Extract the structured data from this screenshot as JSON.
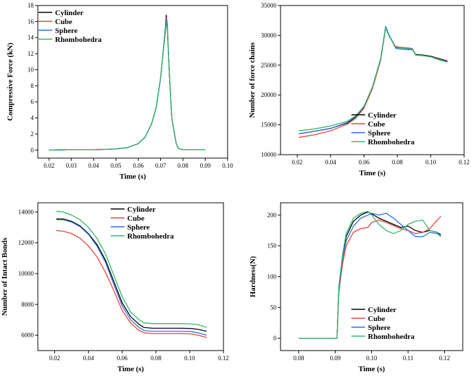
{
  "chart_data": [
    {
      "type": "line",
      "xlabel": "Time (s)",
      "ylabel": "Compressive Force (kN)",
      "xlim": [
        0.015,
        0.1
      ],
      "ylim": [
        -1,
        18
      ],
      "xticks": [
        0.02,
        0.03,
        0.04,
        0.05,
        0.06,
        0.07,
        0.08,
        0.09,
        0.1
      ],
      "xtick_labels": [
        "0.02",
        "0.03",
        "0.04",
        "0.05",
        "0.06",
        "0.07",
        "0.08",
        "0.09",
        "0.10"
      ],
      "yticks": [
        0,
        2,
        4,
        6,
        8,
        10,
        12,
        14,
        16,
        18
      ],
      "ytick_labels": [
        "0",
        "2",
        "4",
        "6",
        "8",
        "10",
        "12",
        "14",
        "16",
        "18"
      ],
      "legend_position": "top-left",
      "series": [
        {
          "name": "Cylinder",
          "color": "#000000",
          "x": [
            0.02,
            0.03,
            0.04,
            0.045,
            0.05,
            0.055,
            0.06,
            0.063,
            0.066,
            0.068,
            0.07,
            0.071,
            0.072,
            0.0725,
            0.073,
            0.074,
            0.075,
            0.077,
            0.078,
            0.08,
            0.09
          ],
          "y": [
            0,
            0.05,
            0.05,
            0.08,
            0.15,
            0.3,
            0.8,
            1.6,
            3.3,
            5.3,
            9.0,
            11.8,
            14.8,
            16.8,
            15.5,
            9.0,
            4.0,
            0.8,
            0.2,
            0.05,
            0.05
          ]
        },
        {
          "name": "Cube",
          "color": "#e8413a",
          "x": [
            0.02,
            0.03,
            0.04,
            0.045,
            0.05,
            0.055,
            0.06,
            0.063,
            0.066,
            0.068,
            0.07,
            0.071,
            0.072,
            0.0725,
            0.073,
            0.074,
            0.075,
            0.077,
            0.078,
            0.08,
            0.09
          ],
          "y": [
            0,
            0.05,
            0.05,
            0.08,
            0.15,
            0.3,
            0.8,
            1.6,
            3.3,
            5.3,
            9.0,
            11.8,
            14.6,
            16.5,
            15.3,
            9.0,
            4.0,
            0.8,
            0.2,
            0.05,
            0.05
          ]
        },
        {
          "name": "Sphere",
          "color": "#2c6fe0",
          "x": [
            0.02,
            0.03,
            0.04,
            0.045,
            0.05,
            0.055,
            0.06,
            0.063,
            0.066,
            0.068,
            0.07,
            0.071,
            0.072,
            0.0725,
            0.073,
            0.074,
            0.075,
            0.077,
            0.078,
            0.08,
            0.09
          ],
          "y": [
            0,
            0.05,
            0.05,
            0.08,
            0.15,
            0.3,
            0.8,
            1.6,
            3.3,
            5.3,
            9.0,
            11.8,
            14.5,
            16.2,
            15.2,
            9.0,
            4.0,
            0.8,
            0.2,
            0.05,
            0.05
          ]
        },
        {
          "name": "Rhombohedra",
          "color": "#2fb76b",
          "x": [
            0.02,
            0.03,
            0.04,
            0.045,
            0.05,
            0.055,
            0.06,
            0.063,
            0.066,
            0.068,
            0.07,
            0.071,
            0.072,
            0.0725,
            0.073,
            0.074,
            0.075,
            0.077,
            0.078,
            0.08,
            0.09
          ],
          "y": [
            0,
            0.05,
            0.05,
            0.08,
            0.15,
            0.3,
            0.8,
            1.6,
            3.3,
            5.3,
            9.0,
            11.8,
            14.3,
            15.8,
            15.0,
            9.0,
            4.0,
            0.8,
            0.2,
            0.05,
            0.05
          ]
        }
      ]
    },
    {
      "type": "line",
      "xlabel": "Time (s)",
      "ylabel": "Number of force chains",
      "xlim": [
        0.01,
        0.12
      ],
      "ylim": [
        10000,
        35000
      ],
      "xticks": [
        0.02,
        0.04,
        0.06,
        0.08,
        0.1,
        0.12
      ],
      "xtick_labels": [
        "0.02",
        "0.04",
        "0.06",
        "0.08",
        "0.10",
        "0.12"
      ],
      "yticks": [
        10000,
        15000,
        20000,
        25000,
        30000,
        35000
      ],
      "ytick_labels": [
        "10000",
        "15000",
        "20000",
        "25000",
        "30000",
        "35000"
      ],
      "legend_position": "bottom-right",
      "series": [
        {
          "name": "Cylinder",
          "color": "#000000",
          "x": [
            0.021,
            0.03,
            0.04,
            0.05,
            0.055,
            0.06,
            0.065,
            0.07,
            0.073,
            0.075,
            0.079,
            0.082,
            0.086,
            0.089,
            0.091,
            0.095,
            0.1,
            0.105,
            0.11
          ],
          "y": [
            13500,
            13900,
            14400,
            15300,
            16300,
            18000,
            21200,
            26000,
            31400,
            30000,
            28000,
            27900,
            27800,
            27700,
            26800,
            26700,
            26500,
            26100,
            25700
          ]
        },
        {
          "name": "Cube",
          "color": "#e8413a",
          "x": [
            0.021,
            0.03,
            0.04,
            0.05,
            0.055,
            0.06,
            0.065,
            0.07,
            0.073,
            0.075,
            0.079,
            0.082,
            0.086,
            0.089,
            0.091,
            0.095,
            0.1,
            0.105,
            0.11
          ],
          "y": [
            12900,
            13300,
            14000,
            15100,
            16100,
            17800,
            21000,
            25800,
            31200,
            29900,
            28100,
            28000,
            27900,
            27800,
            26700,
            26600,
            26400,
            26000,
            25600
          ]
        },
        {
          "name": "Sphere",
          "color": "#2c6fe0",
          "x": [
            0.021,
            0.03,
            0.04,
            0.05,
            0.055,
            0.06,
            0.065,
            0.07,
            0.073,
            0.075,
            0.079,
            0.082,
            0.086,
            0.089,
            0.091,
            0.095,
            0.1,
            0.105,
            0.11
          ],
          "y": [
            13500,
            13900,
            14400,
            15400,
            16400,
            18100,
            21300,
            26100,
            31500,
            30100,
            27800,
            27700,
            27600,
            27600,
            26700,
            26600,
            26400,
            25900,
            25600
          ]
        },
        {
          "name": "Rhombohedra",
          "color": "#2fb76b",
          "x": [
            0.021,
            0.03,
            0.04,
            0.05,
            0.055,
            0.06,
            0.065,
            0.07,
            0.073,
            0.075,
            0.079,
            0.082,
            0.086,
            0.089,
            0.091,
            0.095,
            0.1,
            0.105,
            0.11
          ],
          "y": [
            14000,
            14300,
            14800,
            15600,
            16500,
            18100,
            21300,
            26000,
            31300,
            29900,
            27900,
            27900,
            27800,
            27700,
            26700,
            26600,
            26400,
            25900,
            25500
          ]
        }
      ]
    },
    {
      "type": "line",
      "xlabel": "Time (s)",
      "ylabel": "Number of Intact Bonds",
      "xlim": [
        0.01,
        0.12
      ],
      "ylim": [
        5000,
        14600
      ],
      "xticks": [
        0.02,
        0.04,
        0.06,
        0.08,
        0.1,
        0.12
      ],
      "xtick_labels": [
        "0.02",
        "0.04",
        "0.06",
        "0.08",
        "0.10",
        "0.12"
      ],
      "yticks": [
        6000,
        8000,
        10000,
        12000,
        14000
      ],
      "ytick_labels": [
        "6000",
        "8000",
        "10000",
        "12000",
        "14000"
      ],
      "legend_position": "top-right",
      "series": [
        {
          "name": "Cylinder",
          "color": "#000000",
          "x": [
            0.021,
            0.025,
            0.03,
            0.035,
            0.04,
            0.045,
            0.05,
            0.055,
            0.06,
            0.065,
            0.07,
            0.073,
            0.078,
            0.085,
            0.09,
            0.095,
            0.1,
            0.105,
            0.11
          ],
          "y": [
            13550,
            13550,
            13400,
            13100,
            12600,
            11900,
            10900,
            9500,
            8100,
            7200,
            6700,
            6500,
            6450,
            6450,
            6450,
            6450,
            6440,
            6380,
            6250
          ]
        },
        {
          "name": "Cube",
          "color": "#e8413a",
          "x": [
            0.021,
            0.025,
            0.03,
            0.035,
            0.04,
            0.045,
            0.05,
            0.055,
            0.06,
            0.065,
            0.07,
            0.073,
            0.078,
            0.085,
            0.09,
            0.095,
            0.1,
            0.105,
            0.11
          ],
          "y": [
            12800,
            12750,
            12600,
            12300,
            11800,
            11100,
            10100,
            8900,
            7600,
            6800,
            6300,
            6150,
            6100,
            6100,
            6100,
            6100,
            6090,
            6000,
            5850
          ]
        },
        {
          "name": "Sphere",
          "color": "#2c6fe0",
          "x": [
            0.021,
            0.025,
            0.03,
            0.035,
            0.04,
            0.045,
            0.05,
            0.055,
            0.06,
            0.065,
            0.07,
            0.073,
            0.078,
            0.085,
            0.09,
            0.095,
            0.1,
            0.105,
            0.11
          ],
          "y": [
            13500,
            13500,
            13350,
            13050,
            12550,
            11800,
            10750,
            9300,
            7900,
            7000,
            6500,
            6300,
            6250,
            6250,
            6250,
            6250,
            6240,
            6150,
            6000
          ]
        },
        {
          "name": "Rhombohedra",
          "color": "#2fb76b",
          "x": [
            0.021,
            0.025,
            0.03,
            0.035,
            0.04,
            0.045,
            0.05,
            0.055,
            0.06,
            0.065,
            0.07,
            0.073,
            0.078,
            0.085,
            0.09,
            0.095,
            0.1,
            0.105,
            0.11
          ],
          "y": [
            14050,
            14000,
            13800,
            13500,
            13000,
            12300,
            11300,
            9900,
            8500,
            7500,
            7000,
            6800,
            6750,
            6750,
            6750,
            6750,
            6740,
            6680,
            6500
          ]
        }
      ]
    },
    {
      "type": "line",
      "xlabel": "Time (s)",
      "ylabel": "Hardness(N)",
      "xlim": [
        0.075,
        0.125
      ],
      "ylim": [
        -20,
        220
      ],
      "xticks": [
        0.08,
        0.09,
        0.1,
        0.11,
        0.12
      ],
      "xtick_labels": [
        "0.08",
        "0.09",
        "0.10",
        "0.11",
        "0.12"
      ],
      "yticks": [
        0,
        50,
        100,
        150,
        200
      ],
      "ytick_labels": [
        "0",
        "50",
        "100",
        "150",
        "200"
      ],
      "legend_position": "bottom-right",
      "series": [
        {
          "name": "Cylinder",
          "color": "#000000",
          "x": [
            0.08,
            0.09,
            0.0905,
            0.091,
            0.092,
            0.093,
            0.095,
            0.097,
            0.099,
            0.1,
            0.102,
            0.104,
            0.106,
            0.108,
            0.11,
            0.112,
            0.114,
            0.116,
            0.118,
            0.119
          ],
          "y": [
            0,
            0,
            0,
            80,
            130,
            165,
            190,
            200,
            205,
            202,
            195,
            190,
            185,
            180,
            182,
            175,
            172,
            175,
            172,
            168
          ]
        },
        {
          "name": "Cube",
          "color": "#e8413a",
          "x": [
            0.08,
            0.09,
            0.0905,
            0.091,
            0.092,
            0.093,
            0.095,
            0.097,
            0.099,
            0.1,
            0.102,
            0.104,
            0.106,
            0.108,
            0.11,
            0.112,
            0.114,
            0.116,
            0.118,
            0.119
          ],
          "y": [
            0,
            0,
            0,
            75,
            120,
            150,
            172,
            178,
            180,
            188,
            192,
            188,
            183,
            178,
            175,
            170,
            172,
            178,
            192,
            198
          ]
        },
        {
          "name": "Sphere",
          "color": "#2c6fe0",
          "x": [
            0.08,
            0.09,
            0.0905,
            0.091,
            0.092,
            0.093,
            0.095,
            0.097,
            0.099,
            0.1,
            0.102,
            0.104,
            0.106,
            0.108,
            0.11,
            0.112,
            0.114,
            0.116,
            0.118,
            0.119
          ],
          "y": [
            0,
            0,
            0,
            80,
            128,
            158,
            182,
            195,
            200,
            203,
            200,
            203,
            195,
            185,
            175,
            165,
            165,
            172,
            170,
            165
          ]
        },
        {
          "name": "Rhombohedra",
          "color": "#2fb76b",
          "x": [
            0.08,
            0.09,
            0.0905,
            0.091,
            0.092,
            0.093,
            0.095,
            0.097,
            0.099,
            0.1,
            0.102,
            0.104,
            0.106,
            0.108,
            0.11,
            0.112,
            0.114,
            0.116,
            0.118,
            0.119
          ],
          "y": [
            0,
            0,
            0,
            85,
            135,
            170,
            195,
            203,
            206,
            200,
            185,
            175,
            170,
            175,
            185,
            190,
            192,
            175,
            172,
            165
          ]
        }
      ]
    }
  ]
}
